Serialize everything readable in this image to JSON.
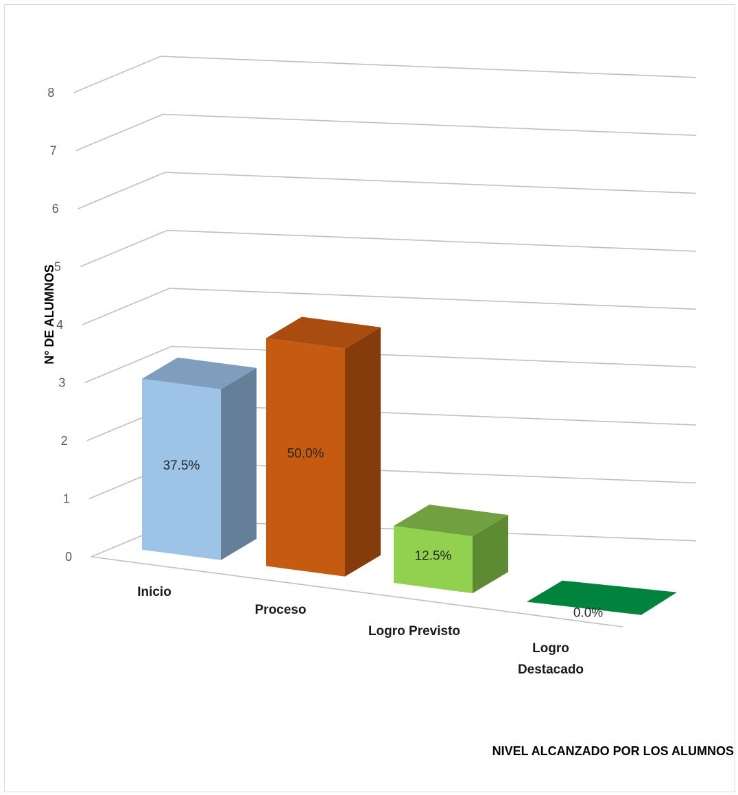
{
  "chart_data": {
    "type": "bar",
    "style": "3d-column",
    "title": "",
    "xlabel": "NIVEL ALCANZADO POR LOS ALUMNOS",
    "ylabel": "N° DE ALUMNOS",
    "ylim": [
      0,
      8
    ],
    "yticks": [
      "0",
      "1",
      "2",
      "3",
      "4",
      "5",
      "6",
      "7",
      "8"
    ],
    "grid": true,
    "legend": "none",
    "categories": [
      [
        "Inicio"
      ],
      [
        "Proceso"
      ],
      [
        "Logro Previsto"
      ],
      [
        "Logro",
        "Destacado"
      ]
    ],
    "values": [
      3,
      4,
      1,
      0
    ],
    "data_labels": [
      "37.5%",
      "50.0%",
      "12.5%",
      "0.0%"
    ],
    "colors": [
      {
        "front": "#9dc3e6",
        "top": "#7f9dbd",
        "side": "#667f99"
      },
      {
        "front": "#c55a11",
        "top": "#a84c0f",
        "side": "#843c0c"
      },
      {
        "front": "#92d050",
        "top": "#70a040",
        "side": "#5e8a33"
      },
      {
        "front": "#00843d",
        "top": "#00843d",
        "side": "#006b31"
      }
    ]
  }
}
